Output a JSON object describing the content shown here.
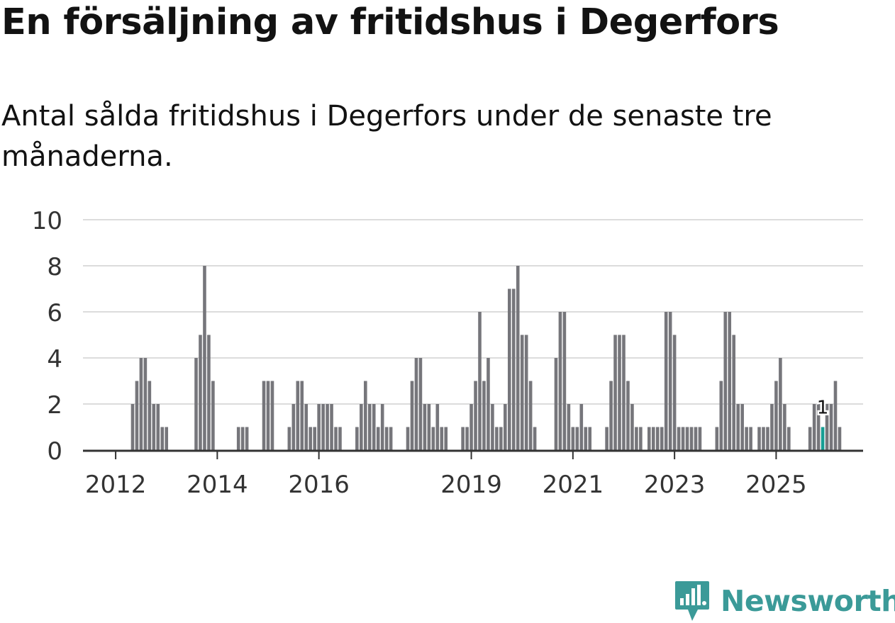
{
  "title": "En försäljning av fritidshus i Degerfors",
  "subtitle": "Antal sålda fritidshus i Degerfors under de senaste tre månaderna.",
  "brand": {
    "name": "Newsworthy",
    "color": "#3b9a98"
  },
  "colors": {
    "bar": "#76767b",
    "highlight": "#179e94",
    "grid": "#dcdcdc",
    "axis": "#333333"
  },
  "chart_data": {
    "type": "bar",
    "title": "En försäljning av fritidshus i Degerfors",
    "subtitle": "Antal sålda fritidshus i Degerfors under de senaste tre månaderna.",
    "xlabel": "",
    "ylabel": "",
    "ylim": [
      0,
      10
    ],
    "yticks": [
      0,
      2,
      4,
      6,
      8,
      10
    ],
    "xticks": [
      {
        "label": "2012",
        "index": 7
      },
      {
        "label": "2014",
        "index": 31
      },
      {
        "label": "2016",
        "index": 55
      },
      {
        "label": "2019",
        "index": 91
      },
      {
        "label": "2021",
        "index": 115
      },
      {
        "label": "2023",
        "index": 139
      },
      {
        "label": "2025",
        "index": 163
      }
    ],
    "grid": true,
    "values": [
      0,
      0,
      0,
      0,
      0,
      0,
      0,
      0,
      0,
      0,
      0,
      2,
      3,
      4,
      4,
      3,
      2,
      2,
      1,
      1,
      0,
      0,
      0,
      0,
      0,
      0,
      4,
      5,
      8,
      5,
      3,
      0,
      0,
      0,
      0,
      0,
      1,
      1,
      1,
      0,
      0,
      0,
      3,
      3,
      3,
      0,
      0,
      0,
      1,
      2,
      3,
      3,
      2,
      1,
      1,
      2,
      2,
      2,
      2,
      1,
      1,
      0,
      0,
      0,
      1,
      2,
      3,
      2,
      2,
      1,
      2,
      1,
      1,
      0,
      0,
      0,
      1,
      3,
      4,
      4,
      2,
      2,
      1,
      2,
      1,
      1,
      0,
      0,
      0,
      1,
      1,
      2,
      3,
      6,
      3,
      4,
      2,
      1,
      1,
      2,
      7,
      7,
      8,
      5,
      5,
      3,
      1,
      0,
      0,
      0,
      0,
      4,
      6,
      6,
      2,
      1,
      1,
      2,
      1,
      1,
      0,
      0,
      0,
      1,
      3,
      5,
      5,
      5,
      3,
      2,
      1,
      1,
      0,
      1,
      1,
      1,
      1,
      6,
      6,
      5,
      1,
      1,
      1,
      1,
      1,
      1,
      0,
      0,
      0,
      1,
      3,
      6,
      6,
      5,
      2,
      2,
      1,
      1,
      0,
      1,
      1,
      1,
      2,
      3,
      4,
      2,
      1,
      0,
      0,
      0,
      0,
      1,
      2,
      2,
      1,
      2,
      2,
      3,
      1
    ],
    "highlight_index": 174,
    "highlight_label": "1"
  }
}
